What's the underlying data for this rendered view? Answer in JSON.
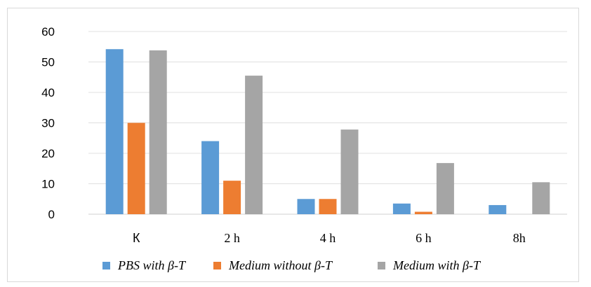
{
  "chart_data": {
    "type": "bar",
    "categories": [
      "К",
      "2 h",
      "4 h",
      "6 h",
      "8h"
    ],
    "series": [
      {
        "name": "PBS with β-T",
        "color": "#5b9bd5",
        "values": [
          54.2,
          24.0,
          5.0,
          3.5,
          3.0
        ]
      },
      {
        "name": "Medium without β-T",
        "color": "#ed7d31",
        "values": [
          30.0,
          11.0,
          5.0,
          0.8,
          0
        ]
      },
      {
        "name": "Medium with β-T",
        "color": "#a5a5a5",
        "values": [
          53.8,
          45.5,
          27.8,
          16.8,
          10.5
        ]
      }
    ],
    "y_ticks": [
      "0",
      "10",
      "20",
      "30",
      "40",
      "50",
      "60"
    ],
    "ylim": [
      0,
      60
    ],
    "grid": true,
    "legend_position": "bottom"
  }
}
